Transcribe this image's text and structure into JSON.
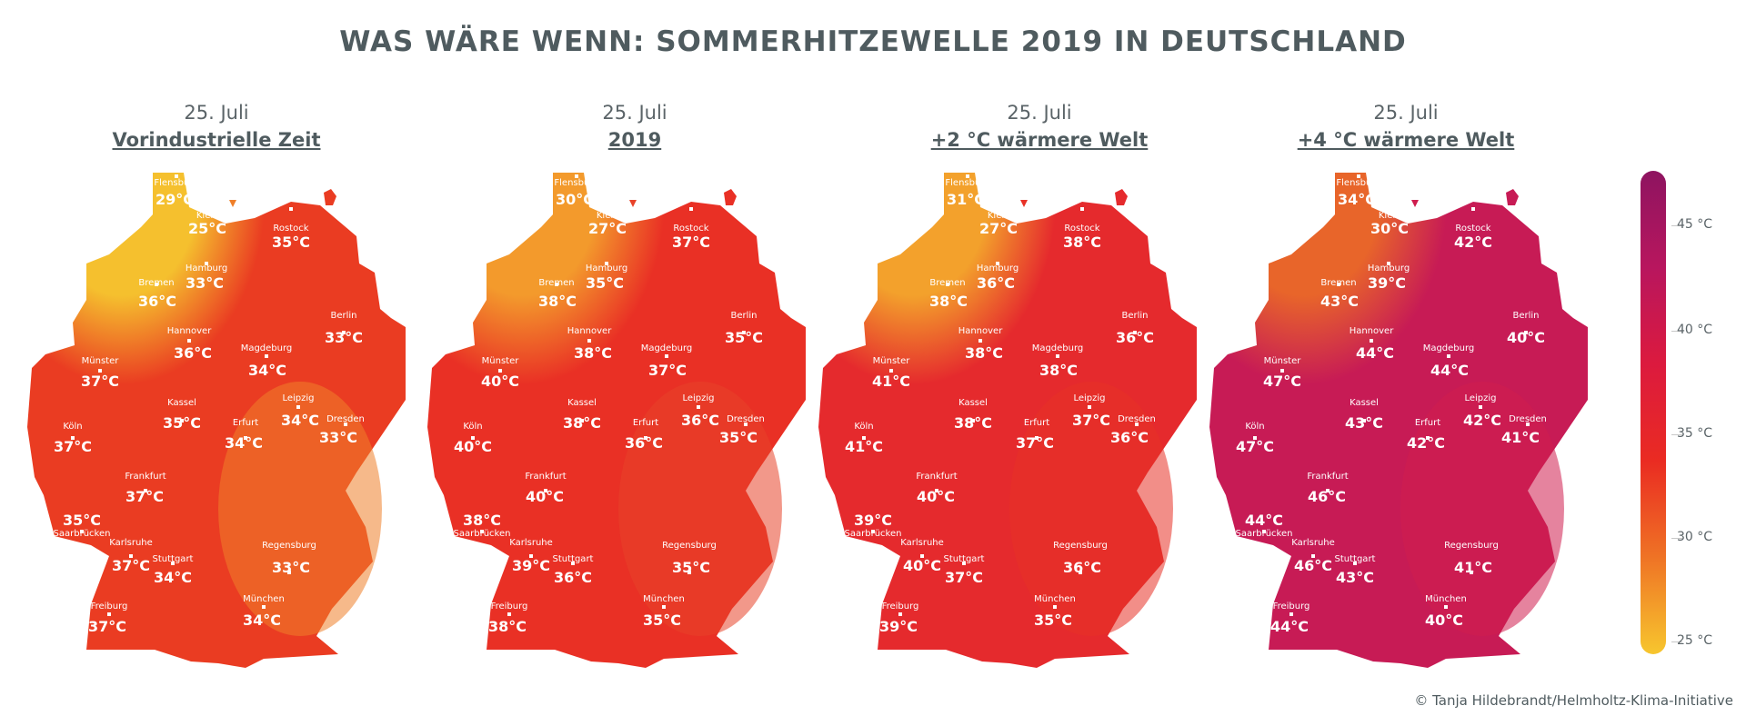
{
  "title": "WAS WÄRE WENN: SOMMERHITZEWELLE 2019 IN DEUTSCHLAND",
  "credit": "© Tanja Hildebrandt/Helmholtz-Klima-Initiative",
  "legend": {
    "labels": [
      "45 °C",
      "40 °C",
      "35 °C",
      "30 °C",
      "25 °C"
    ],
    "range": [
      25,
      47
    ]
  },
  "cities": [
    "Flensburg",
    "Kiel",
    "Rostock",
    "Hamburg",
    "Bremen",
    "Berlin",
    "Hannover",
    "Magdeburg",
    "Münster",
    "Kassel",
    "Leipzig",
    "Dresden",
    "Köln",
    "Erfurt",
    "Frankfurt",
    "Saarbrücken",
    "Karlsruhe",
    "Stuttgart",
    "Regensburg",
    "Freiburg",
    "München"
  ],
  "panels": [
    {
      "date": "25. Juli",
      "scenario": "Vorindustrielle Zeit",
      "temps": [
        "29°C",
        "25°C",
        "35°C",
        "33°C",
        "36°C",
        "33°C",
        "36°C",
        "34°C",
        "37°C",
        "35°C",
        "34°C",
        "33°C",
        "37°C",
        "34°C",
        "37°C",
        "35°C",
        "37°C",
        "34°C",
        "33°C",
        "37°C",
        "34°C"
      ],
      "colors": {
        "north": "#f5c02e",
        "main": "#ea3c22",
        "east": "#ef7f29"
      }
    },
    {
      "date": "25. Juli",
      "scenario": "2019",
      "temps": [
        "30°C",
        "27°C",
        "37°C",
        "35°C",
        "38°C",
        "35°C",
        "38°C",
        "37°C",
        "40°C",
        "38°C",
        "36°C",
        "35°C",
        "40°C",
        "36°C",
        "40°C",
        "38°C",
        "39°C",
        "36°C",
        "35°C",
        "38°C",
        "35°C"
      ],
      "colors": {
        "north": "#f39a2c",
        "main": "#e93025",
        "east": "#e8432a"
      }
    },
    {
      "date": "25. Juli",
      "scenario": "+2 °C wärmere Welt",
      "temps": [
        "31°C",
        "27°C",
        "38°C",
        "36°C",
        "38°C",
        "36°C",
        "38°C",
        "38°C",
        "41°C",
        "38°C",
        "37°C",
        "36°C",
        "41°C",
        "37°C",
        "40°C",
        "39°C",
        "40°C",
        "37°C",
        "36°C",
        "39°C",
        "35°C"
      ],
      "colors": {
        "north": "#f3a12c",
        "main": "#e52a2d",
        "east": "#e83227"
      }
    },
    {
      "date": "25. Juli",
      "scenario": "+4 °C wärmere Welt",
      "temps": [
        "34°C",
        "30°C",
        "42°C",
        "39°C",
        "43°C",
        "40°C",
        "44°C",
        "44°C",
        "47°C",
        "43°C",
        "42°C",
        "41°C",
        "47°C",
        "42°C",
        "46°C",
        "44°C",
        "46°C",
        "43°C",
        "41°C",
        "44°C",
        "40°C"
      ],
      "colors": {
        "north": "#e8652a",
        "main": "#c71b55",
        "east": "#cf1d4e"
      }
    }
  ]
}
